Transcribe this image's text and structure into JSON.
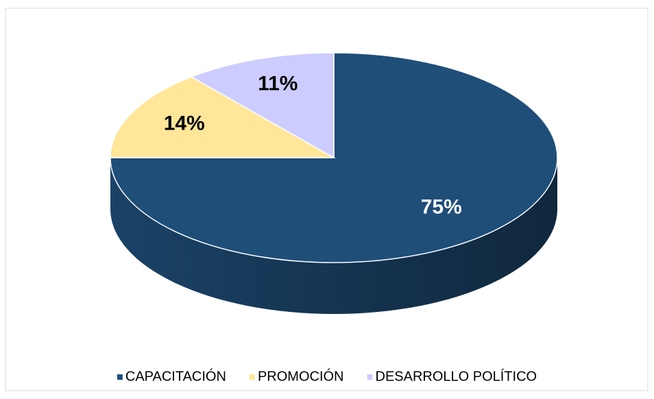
{
  "chart_data": {
    "type": "pie",
    "style": "3d",
    "categories": [
      "CAPACITACIÓN",
      "PROMOCIÓN",
      "DESARROLLO POLÍTICO"
    ],
    "values": [
      75,
      14,
      11
    ],
    "value_labels": [
      "75%",
      "14%",
      "11%"
    ],
    "colors": [
      "#1f4e79",
      "#ffe699",
      "#ccccff"
    ],
    "legend": "bottom"
  }
}
